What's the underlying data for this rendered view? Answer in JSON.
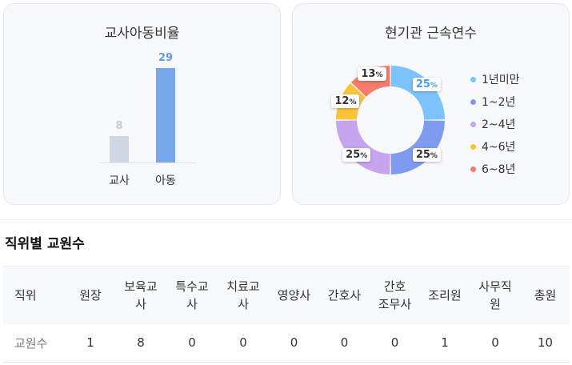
{
  "ratio_card": {
    "title": "교사아동비율",
    "bars": [
      {
        "label": "교사",
        "value": 8,
        "color": "#cfd6e4",
        "text_color": "#c3cad8"
      },
      {
        "label": "아동",
        "value": 29,
        "color": "#78a7ea",
        "text_color": "#6a99de"
      }
    ],
    "max": 29
  },
  "tenure_card": {
    "title": "현기관 근속연수",
    "slices": [
      {
        "label": "1년미만",
        "value": 25,
        "color": "#7cc3fb",
        "text_color": "#4a9fe6"
      },
      {
        "label": "1~2년",
        "value": 25,
        "color": "#7f9bf0",
        "text_color": "#333333"
      },
      {
        "label": "2~4년",
        "value": 25,
        "color": "#c6a4ee",
        "text_color": "#333333"
      },
      {
        "label": "4~6년",
        "value": 12,
        "color": "#f9c33c",
        "text_color": "#333333"
      },
      {
        "label": "6~8년",
        "value": 13,
        "color": "#f47c6a",
        "text_color": "#333333"
      }
    ],
    "unit": "%"
  },
  "staff_section": {
    "title": "직위별 교원수",
    "headers": [
      "직위",
      "원장",
      "보육교\n사",
      "특수교\n사",
      "치료교\n사",
      "영양사",
      "간호사",
      "간호\n조무사",
      "조리원",
      "사무직\n원",
      "총원"
    ],
    "row_label": "교원수",
    "values": [
      "1",
      "8",
      "0",
      "0",
      "0",
      "0",
      "0",
      "1",
      "0",
      "10"
    ]
  }
}
